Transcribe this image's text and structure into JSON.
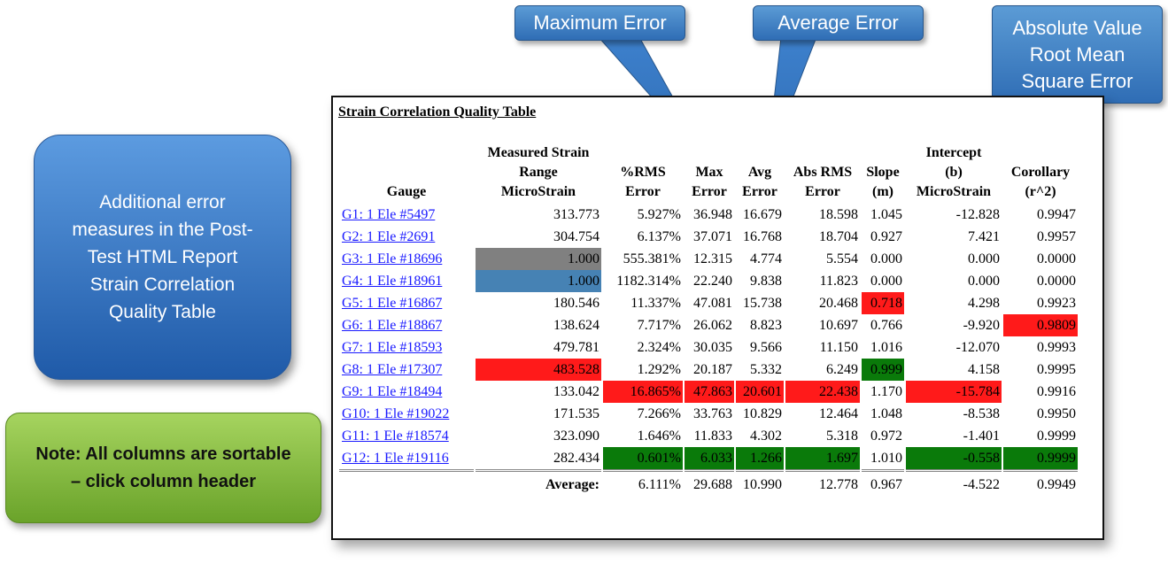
{
  "callouts": {
    "max_error": "Maximum Error",
    "avg_error": "Average Error",
    "abs_rms_line1": "Absolute Value",
    "abs_rms_line2": "Root Mean",
    "abs_rms_line3": "Square Error"
  },
  "side_note": {
    "line1": "Additional error",
    "line2": "measures in the Post-",
    "line3": "Test HTML Report",
    "line4": "Strain Correlation",
    "line5": "Quality Table"
  },
  "sort_note": {
    "line1": "Note:  All columns are sortable",
    "line2": "– click column header"
  },
  "report": {
    "title": "Strain Correlation Quality Table",
    "headers": {
      "gauge": "Gauge",
      "range_1": "Measured Strain",
      "range_2": "Range",
      "range_3": "MicroStrain",
      "rms_1": "%RMS",
      "rms_2": "Error",
      "max_1": "Max",
      "max_2": "Error",
      "avg_1": "Avg",
      "avg_2": "Error",
      "absrms_1": "Abs RMS",
      "absrms_2": "Error",
      "slope_1": "Slope",
      "slope_2": "(m)",
      "intercept_1": "Intercept",
      "intercept_2": "(b)",
      "intercept_3": "MicroStrain",
      "corollary_1": "Corollary",
      "corollary_2": "(r^2)"
    },
    "rows": [
      {
        "gauge": "G1: 1 Ele #5497",
        "range": "313.773",
        "rms": "5.927%",
        "max": "36.948",
        "avg": "16.679",
        "absrms": "18.598",
        "slope": "1.045",
        "intercept": "-12.828",
        "corollary": "0.9947"
      },
      {
        "gauge": "G2: 1 Ele #2691",
        "range": "304.754",
        "rms": "6.137%",
        "max": "37.071",
        "avg": "16.768",
        "absrms": "18.704",
        "slope": "0.927",
        "intercept": "7.421",
        "corollary": "0.9957"
      },
      {
        "gauge": "G3: 1 Ele #18696",
        "range": "1.000",
        "rms": "555.381%",
        "max": "12.315",
        "avg": "4.774",
        "absrms": "5.554",
        "slope": "0.000",
        "intercept": "0.000",
        "corollary": "0.0000"
      },
      {
        "gauge": "G4: 1 Ele #18961",
        "range": "1.000",
        "rms": "1182.314%",
        "max": "22.240",
        "avg": "9.838",
        "absrms": "11.823",
        "slope": "0.000",
        "intercept": "0.000",
        "corollary": "0.0000"
      },
      {
        "gauge": "G5: 1 Ele #16867",
        "range": "180.546",
        "rms": "11.337%",
        "max": "47.081",
        "avg": "15.738",
        "absrms": "20.468",
        "slope": "0.718",
        "intercept": "4.298",
        "corollary": "0.9923"
      },
      {
        "gauge": "G6: 1 Ele #18867",
        "range": "138.624",
        "rms": "7.717%",
        "max": "26.062",
        "avg": "8.823",
        "absrms": "10.697",
        "slope": "0.766",
        "intercept": "-9.920",
        "corollary": "0.9809"
      },
      {
        "gauge": "G7: 1 Ele #18593",
        "range": "479.781",
        "rms": "2.324%",
        "max": "30.035",
        "avg": "9.566",
        "absrms": "11.150",
        "slope": "1.016",
        "intercept": "-12.070",
        "corollary": "0.9993"
      },
      {
        "gauge": "G8: 1 Ele #17307",
        "range": "483.528",
        "rms": "1.292%",
        "max": "20.187",
        "avg": "5.332",
        "absrms": "6.249",
        "slope": "0.999",
        "intercept": "4.158",
        "corollary": "0.9995"
      },
      {
        "gauge": "G9: 1 Ele #18494",
        "range": "133.042",
        "rms": "16.865%",
        "max": "47.863",
        "avg": "20.601",
        "absrms": "22.438",
        "slope": "1.170",
        "intercept": "-15.784",
        "corollary": "0.9916"
      },
      {
        "gauge": "G10: 1 Ele #19022",
        "range": "171.535",
        "rms": "7.266%",
        "max": "33.763",
        "avg": "10.829",
        "absrms": "12.464",
        "slope": "1.048",
        "intercept": "-8.538",
        "corollary": "0.9950"
      },
      {
        "gauge": "G11: 1 Ele #18574",
        "range": "323.090",
        "rms": "1.646%",
        "max": "11.833",
        "avg": "4.302",
        "absrms": "5.318",
        "slope": "0.972",
        "intercept": "-1.401",
        "corollary": "0.9999"
      },
      {
        "gauge": "G12: 1 Ele #19116",
        "range": "282.434",
        "rms": "0.601%",
        "max": "6.033",
        "avg": "1.266",
        "absrms": "1.697",
        "slope": "1.010",
        "intercept": "-0.558",
        "corollary": "0.9999"
      }
    ],
    "average": {
      "label": "Average:",
      "rms": "6.111%",
      "max": "29.688",
      "avg": "10.990",
      "absrms": "12.778",
      "slope": "0.967",
      "intercept": "-4.522",
      "corollary": "0.9949"
    }
  },
  "colors": {
    "highlight_red": "#ff1a1a",
    "highlight_green": "#0a7a0a",
    "highlight_gray": "#808080",
    "highlight_blue": "#4682b4",
    "callout_blue": "#3b7dc6",
    "note_green": "#8cc245",
    "link_blue": "#1a1aff"
  }
}
